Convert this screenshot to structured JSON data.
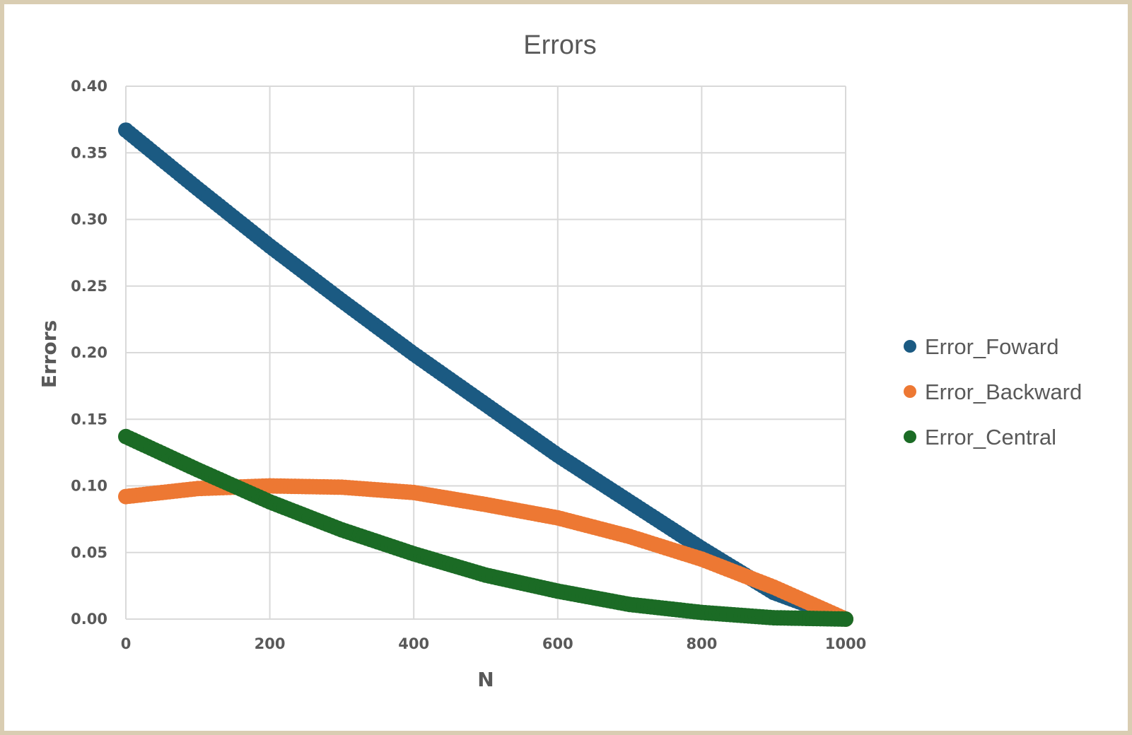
{
  "chart_data": {
    "type": "scatter",
    "title": "Errors",
    "xlabel": "N",
    "ylabel": "Errors",
    "xlim": [
      0,
      1000
    ],
    "ylim": [
      0,
      0.4
    ],
    "x_ticks": [
      "0",
      "200",
      "400",
      "600",
      "800",
      "1000"
    ],
    "y_ticks": [
      "0.00",
      "0.05",
      "0.10",
      "0.15",
      "0.20",
      "0.25",
      "0.30",
      "0.35",
      "0.40"
    ],
    "grid": true,
    "legend_position": "right",
    "series": [
      {
        "name": "Error_Foward",
        "color": "#1b5a82",
        "x": [
          0,
          100,
          200,
          300,
          400,
          500,
          600,
          700,
          800,
          900,
          1000
        ],
        "y": [
          0.367,
          0.323,
          0.28,
          0.239,
          0.199,
          0.161,
          0.123,
          0.088,
          0.053,
          0.02,
          0.0
        ]
      },
      {
        "name": "Error_Backward",
        "color": "#ed7833",
        "x": [
          0,
          100,
          200,
          300,
          400,
          500,
          600,
          700,
          800,
          900,
          1000
        ],
        "y": [
          0.092,
          0.098,
          0.1,
          0.099,
          0.095,
          0.086,
          0.076,
          0.062,
          0.045,
          0.024,
          0.0
        ]
      },
      {
        "name": "Error_Central",
        "color": "#1b6b25",
        "x": [
          0,
          100,
          200,
          300,
          400,
          500,
          600,
          700,
          800,
          900,
          1000
        ],
        "y": [
          0.137,
          0.112,
          0.088,
          0.067,
          0.049,
          0.033,
          0.021,
          0.011,
          0.005,
          0.001,
          0.0
        ]
      }
    ]
  }
}
